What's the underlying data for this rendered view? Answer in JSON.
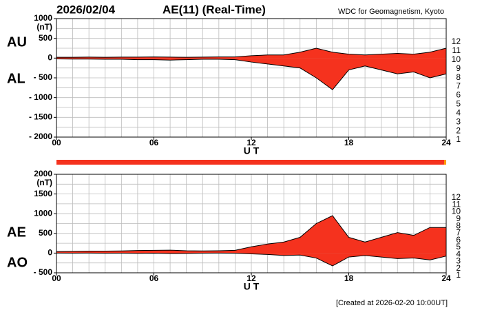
{
  "header": {
    "date": "2026/02/04",
    "title": "AE(11) (Real-Time)",
    "source": "WDC for Geomagnetism, Kyoto",
    "footer": "[Created at 2026-02-20 10:00UT]"
  },
  "levels": [
    12,
    11,
    10,
    9,
    8,
    7,
    6,
    5,
    4,
    3,
    2,
    1
  ],
  "level_colors": [
    "#ff3399",
    "#ee1111",
    "#ff9900",
    "#eeee00",
    "#99ee33",
    "#33cccc",
    "#3366ff",
    "#3333aa",
    "#cc33cc",
    "#222222",
    "#777777",
    "#cccccc"
  ],
  "chart_data": [
    {
      "type": "area",
      "xlabel": "U T",
      "ylabel": "(nT)",
      "fill": "#f5321e",
      "x": [
        0,
        1,
        2,
        3,
        4,
        5,
        6,
        7,
        8,
        9,
        10,
        11,
        12,
        13,
        14,
        15,
        16,
        17,
        18,
        19,
        20,
        21,
        22,
        23,
        24
      ],
      "series": [
        {
          "name": "AU",
          "color": "#000000",
          "values": [
            20,
            20,
            25,
            20,
            25,
            25,
            30,
            25,
            20,
            25,
            30,
            30,
            60,
            80,
            80,
            150,
            250,
            150,
            100,
            80,
            100,
            120,
            100,
            150,
            250
          ]
        },
        {
          "name": "AL",
          "color": "#000000",
          "values": [
            -20,
            -25,
            -25,
            -30,
            -30,
            -40,
            -40,
            -50,
            -40,
            -30,
            -30,
            -40,
            -100,
            -150,
            -200,
            -250,
            -500,
            -800,
            -300,
            -200,
            -300,
            -400,
            -350,
            -500,
            -400
          ]
        }
      ],
      "xlim": [
        0,
        24
      ],
      "xticks": [
        {
          "value": 0,
          "label": "00"
        },
        {
          "value": 6,
          "label": "06"
        },
        12,
        18,
        24
      ],
      "ylim": [
        -2000,
        1000
      ],
      "yticks": [
        1000,
        500,
        0,
        {
          "value": -500,
          "label": "- 500"
        },
        {
          "value": -1000,
          "label": "- 1000"
        },
        {
          "value": -1500,
          "label": "- 1500"
        },
        {
          "value": -2000,
          "label": "- 2000"
        }
      ],
      "x_grid": [
        1,
        2,
        3,
        4,
        5,
        6,
        7,
        8,
        9,
        10,
        11,
        12,
        13,
        14,
        15,
        16,
        17,
        18,
        19,
        20,
        21,
        22,
        23
      ],
      "y_grid": [
        750,
        500,
        250,
        0,
        -250,
        -500,
        -750,
        -1000,
        -1250,
        -1500,
        -1750
      ]
    },
    {
      "type": "area",
      "xlabel": "U T",
      "ylabel": "(nT)",
      "fill": "#f5321e",
      "x": [
        0,
        1,
        2,
        3,
        4,
        5,
        6,
        7,
        8,
        9,
        10,
        11,
        12,
        13,
        14,
        15,
        16,
        17,
        18,
        19,
        20,
        21,
        22,
        23,
        24
      ],
      "series": [
        {
          "name": "AE",
          "color": "#000000",
          "values": [
            40,
            45,
            50,
            50,
            55,
            65,
            70,
            75,
            60,
            55,
            60,
            70,
            160,
            230,
            280,
            400,
            750,
            950,
            400,
            280,
            400,
            520,
            450,
            650,
            650
          ]
        },
        {
          "name": "AO",
          "color": "#000000",
          "values": [
            0,
            -2.5,
            0,
            -5,
            -2.5,
            -7.5,
            -5,
            -12.5,
            -10,
            -2.5,
            0,
            -5,
            -20,
            -35,
            -60,
            -50,
            -125,
            -325,
            -100,
            -60,
            -100,
            -140,
            -125,
            -175,
            -75
          ]
        }
      ],
      "xlim": [
        0,
        24
      ],
      "xticks": [
        {
          "value": 0,
          "label": "00"
        },
        {
          "value": 6,
          "label": "06"
        },
        12,
        18,
        24
      ],
      "ylim": [
        -500,
        2000
      ],
      "yticks": [
        2000,
        1500,
        1000,
        500,
        0,
        {
          "value": -500,
          "label": "- 500"
        }
      ],
      "x_grid": [
        1,
        2,
        3,
        4,
        5,
        6,
        7,
        8,
        9,
        10,
        11,
        12,
        13,
        14,
        15,
        16,
        17,
        18,
        19,
        20,
        21,
        22,
        23
      ],
      "y_grid": [
        1750,
        1500,
        1250,
        1000,
        750,
        500,
        250,
        0,
        -250
      ]
    }
  ]
}
